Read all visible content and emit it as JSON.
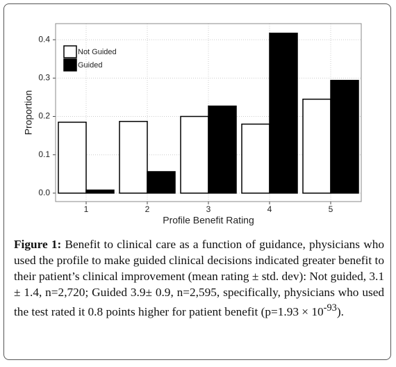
{
  "chart_data": {
    "type": "bar",
    "categories": [
      "1",
      "2",
      "3",
      "4",
      "5"
    ],
    "series": [
      {
        "name": "Not Guided",
        "color": "#ffffff",
        "values": [
          0.185,
          0.187,
          0.2,
          0.18,
          0.245
        ]
      },
      {
        "name": "Guided",
        "color": "#000000",
        "values": [
          0.008,
          0.056,
          0.227,
          0.417,
          0.294
        ]
      }
    ],
    "ylim": [
      -0.022,
      0.442
    ],
    "yticks": [
      {
        "value": 0,
        "label": "0.0"
      },
      0.1,
      0.2,
      0.3,
      0.4
    ],
    "y_label": "Proportion",
    "x_label": "Profile Benefit Rating",
    "grid": true,
    "legend": "top-left"
  },
  "caption": {
    "label": "Figure 1:",
    "text": "Benefit to clinical care as a function of guidance, physicians who used the profile to make guided clinical decisions indicated greater benefit to their patient’s clinical improvement (mean rating ± std. dev): Not guided, 3.1 ± 1.4, n=2,720; Guided 3.9± 0.9, n=2,595, specifically, physicians who used the test rated it 0.8 points higher for patient benefit (p=1.93 × 10",
    "superscript": "-93",
    "text_end": ")."
  }
}
